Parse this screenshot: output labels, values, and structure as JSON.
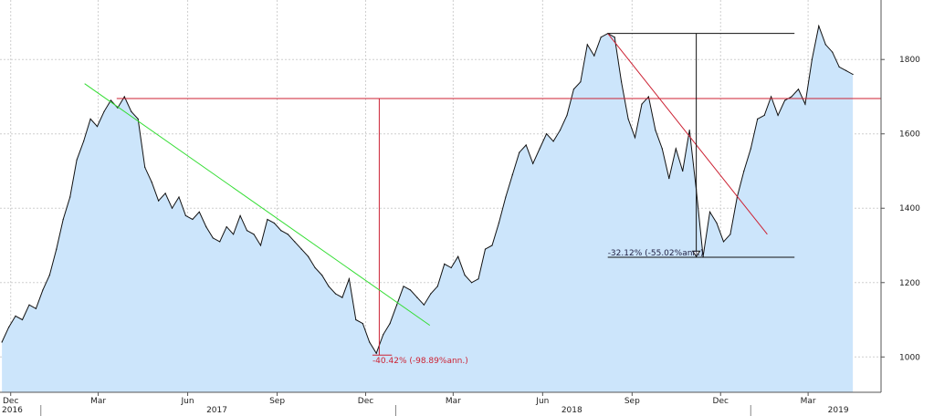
{
  "chart_data": {
    "type": "area",
    "title": "",
    "xlabel": "",
    "ylabel": "",
    "ylim": [
      905,
      1960
    ],
    "xlim": [
      "2016-11-20",
      "2019-05-15"
    ],
    "y_axis_side": "right",
    "y_ticks": [
      1000,
      1200,
      1400,
      1600,
      1800
    ],
    "grid": true,
    "x_month_ticks": [
      {
        "date": "2016-12-01",
        "label": "Dec"
      },
      {
        "date": "2017-03-01",
        "label": "Mar"
      },
      {
        "date": "2017-06-01",
        "label": "Jun"
      },
      {
        "date": "2017-09-01",
        "label": "Sep"
      },
      {
        "date": "2017-12-01",
        "label": "Dec"
      },
      {
        "date": "2018-03-01",
        "label": "Mar"
      },
      {
        "date": "2018-06-01",
        "label": "Jun"
      },
      {
        "date": "2018-09-01",
        "label": "Sep"
      },
      {
        "date": "2018-12-01",
        "label": "Dec"
      },
      {
        "date": "2019-03-01",
        "label": "Mar"
      }
    ],
    "x_year_ticks": [
      {
        "date": "2016-11-22",
        "label": "2016"
      },
      {
        "date": "2017-07-01",
        "label": "2017"
      },
      {
        "date": "2018-07-01",
        "label": "2018"
      },
      {
        "date": "2019-04-01",
        "label": "2019"
      }
    ],
    "colors": {
      "fill": "#cce5fb",
      "line": "#111111",
      "grid": "#cfcfcf",
      "red": "#cc2233",
      "green": "#33dd33",
      "black": "#111111"
    },
    "series": [
      {
        "x": [
          "2016-11-22",
          "2016-11-29",
          "2016-12-06",
          "2016-12-13",
          "2016-12-20",
          "2016-12-27",
          "2017-01-03",
          "2017-01-10",
          "2017-01-17",
          "2017-01-24",
          "2017-01-31",
          "2017-02-07",
          "2017-02-14",
          "2017-02-21",
          "2017-02-28",
          "2017-03-07",
          "2017-03-14",
          "2017-03-21",
          "2017-03-28",
          "2017-04-04",
          "2017-04-11",
          "2017-04-18",
          "2017-04-25",
          "2017-05-02",
          "2017-05-09",
          "2017-05-16",
          "2017-05-23",
          "2017-05-30",
          "2017-06-06",
          "2017-06-13",
          "2017-06-20",
          "2017-06-27",
          "2017-07-04",
          "2017-07-11",
          "2017-07-18",
          "2017-07-25",
          "2017-08-01",
          "2017-08-08",
          "2017-08-15",
          "2017-08-22",
          "2017-08-29",
          "2017-09-05",
          "2017-09-12",
          "2017-09-19",
          "2017-09-26",
          "2017-10-03",
          "2017-10-10",
          "2017-10-17",
          "2017-10-24",
          "2017-10-31",
          "2017-11-07",
          "2017-11-14",
          "2017-11-21",
          "2017-11-28",
          "2017-12-05",
          "2017-12-12",
          "2017-12-19",
          "2017-12-26",
          "2018-01-02",
          "2018-01-09",
          "2018-01-16",
          "2018-01-23",
          "2018-01-30",
          "2018-02-06",
          "2018-02-13",
          "2018-02-20",
          "2018-02-27",
          "2018-03-06",
          "2018-03-13",
          "2018-03-20",
          "2018-03-27",
          "2018-04-03",
          "2018-04-10",
          "2018-04-17",
          "2018-04-24",
          "2018-05-01",
          "2018-05-08",
          "2018-05-15",
          "2018-05-22",
          "2018-05-29",
          "2018-06-05",
          "2018-06-12",
          "2018-06-19",
          "2018-06-26",
          "2018-07-03",
          "2018-07-10",
          "2018-07-17",
          "2018-07-24",
          "2018-07-31",
          "2018-08-07",
          "2018-08-14",
          "2018-08-21",
          "2018-08-28",
          "2018-09-04",
          "2018-09-11",
          "2018-09-18",
          "2018-09-25",
          "2018-10-02",
          "2018-10-09",
          "2018-10-16",
          "2018-10-23",
          "2018-10-30",
          "2018-11-06",
          "2018-11-13",
          "2018-11-20",
          "2018-11-27",
          "2018-12-04",
          "2018-12-11",
          "2018-12-18",
          "2018-12-25",
          "2019-01-01",
          "2019-01-08",
          "2019-01-15",
          "2019-01-22",
          "2019-01-29",
          "2019-02-05",
          "2019-02-12",
          "2019-02-19",
          "2019-02-26",
          "2019-03-05",
          "2019-03-12",
          "2019-03-19",
          "2019-03-26",
          "2019-04-02",
          "2019-04-09",
          "2019-04-16"
        ],
        "values": [
          1040,
          1080,
          1110,
          1100,
          1140,
          1130,
          1180,
          1220,
          1290,
          1370,
          1430,
          1530,
          1580,
          1640,
          1620,
          1660,
          1690,
          1670,
          1700,
          1660,
          1640,
          1510,
          1470,
          1420,
          1440,
          1400,
          1430,
          1380,
          1370,
          1390,
          1350,
          1320,
          1310,
          1350,
          1330,
          1380,
          1340,
          1330,
          1300,
          1370,
          1360,
          1340,
          1330,
          1310,
          1290,
          1270,
          1240,
          1220,
          1190,
          1170,
          1160,
          1210,
          1100,
          1090,
          1040,
          1010,
          1060,
          1090,
          1140,
          1190,
          1180,
          1160,
          1140,
          1170,
          1190,
          1250,
          1240,
          1270,
          1220,
          1200,
          1210,
          1290,
          1300,
          1360,
          1430,
          1490,
          1550,
          1570,
          1520,
          1560,
          1600,
          1580,
          1610,
          1650,
          1720,
          1740,
          1840,
          1810,
          1860,
          1870,
          1860,
          1740,
          1640,
          1590,
          1680,
          1700,
          1610,
          1560,
          1480,
          1560,
          1500,
          1610,
          1450,
          1270,
          1390,
          1360,
          1310,
          1330,
          1430,
          1500,
          1560,
          1640,
          1650,
          1700,
          1650,
          1690,
          1700,
          1720,
          1680,
          1800,
          1890,
          1840,
          1820,
          1780,
          1770,
          1760
        ]
      }
    ],
    "annotations": [
      {
        "label": "-40.42% (-98.89%ann.)",
        "color": "red"
      },
      {
        "label": "-32.12% (-55.02%ann.)",
        "color": "black"
      }
    ],
    "overlays": {
      "red_horizontal": {
        "y": 1695,
        "x_from": "2017-03-20",
        "x_to": "2019-05-15"
      },
      "red_vertical": {
        "x": "2017-12-15",
        "y_from": 1695,
        "y_to": 1005
      },
      "red_low_marker": {
        "x_from": "2017-12-08",
        "x_to": "2017-12-28",
        "y": 1005
      },
      "green_trend": {
        "x1": "2017-02-15",
        "y1": 1735,
        "x2": "2018-02-05",
        "y2": 1085
      },
      "red_trend": {
        "x1": "2018-08-07",
        "y1": 1870,
        "x2": "2019-01-18",
        "y2": 1330
      },
      "black_top": {
        "y": 1870,
        "x_from": "2018-08-07",
        "x_to": "2019-02-15"
      },
      "black_vertical": {
        "x": "2018-11-06",
        "y_from": 1870,
        "y_to": 1270
      },
      "black_bottom": {
        "y": 1268,
        "x_from": "2018-08-07",
        "x_to": "2019-02-15"
      }
    }
  }
}
